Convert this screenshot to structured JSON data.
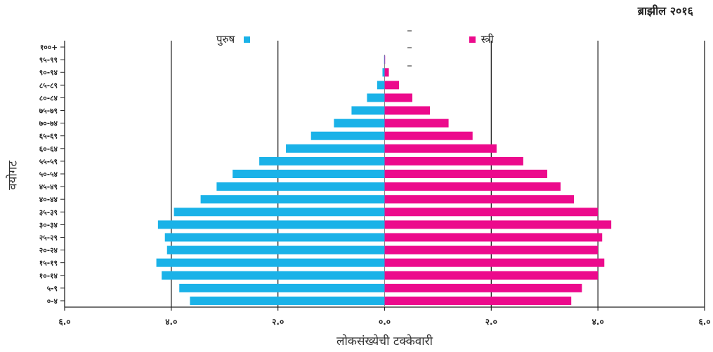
{
  "chart_data": {
    "type": "bar",
    "title": "ब्राझील २०१६",
    "xlabel": "लोकसंख्येची टक्केवारी",
    "ylabel": "वयोगट",
    "xlim": [
      -6,
      6
    ],
    "x_ticks": [
      -6,
      -4,
      -2,
      0,
      2,
      4,
      6
    ],
    "x_tick_labels": [
      "६.०",
      "४.०",
      "२.०",
      "०.०",
      "२.०",
      "४.०",
      "६.०"
    ],
    "grid": true,
    "legend": "top",
    "categories": [
      "०-४",
      "५-९",
      "१०-१४",
      "१५-१९",
      "२०-२४",
      "२५-२९",
      "३०-३४",
      "३५-३९",
      "४०-४४",
      "४५-४९",
      "५०-५४",
      "५५-५९",
      "६०-६४",
      "६५-६९",
      "७०-७४",
      "७५-७९",
      "८०-८४",
      "८५-८९",
      "९०-९४",
      "९५-९९",
      "१००+"
    ],
    "series": [
      {
        "name": "पुरुष",
        "color": "#1ab2e8",
        "values": [
          3.65,
          3.85,
          4.18,
          4.28,
          4.08,
          4.12,
          4.25,
          3.95,
          3.45,
          3.15,
          2.85,
          2.35,
          1.85,
          1.38,
          0.95,
          0.62,
          0.33,
          0.14,
          0.04,
          0.01,
          0.0
        ]
      },
      {
        "name": "स्त्री",
        "color": "#ec0a8c",
        "values": [
          3.5,
          3.7,
          4.0,
          4.12,
          4.0,
          4.08,
          4.25,
          4.0,
          3.55,
          3.3,
          3.05,
          2.6,
          2.1,
          1.65,
          1.2,
          0.85,
          0.52,
          0.27,
          0.08,
          0.01,
          0.0
        ]
      }
    ]
  }
}
